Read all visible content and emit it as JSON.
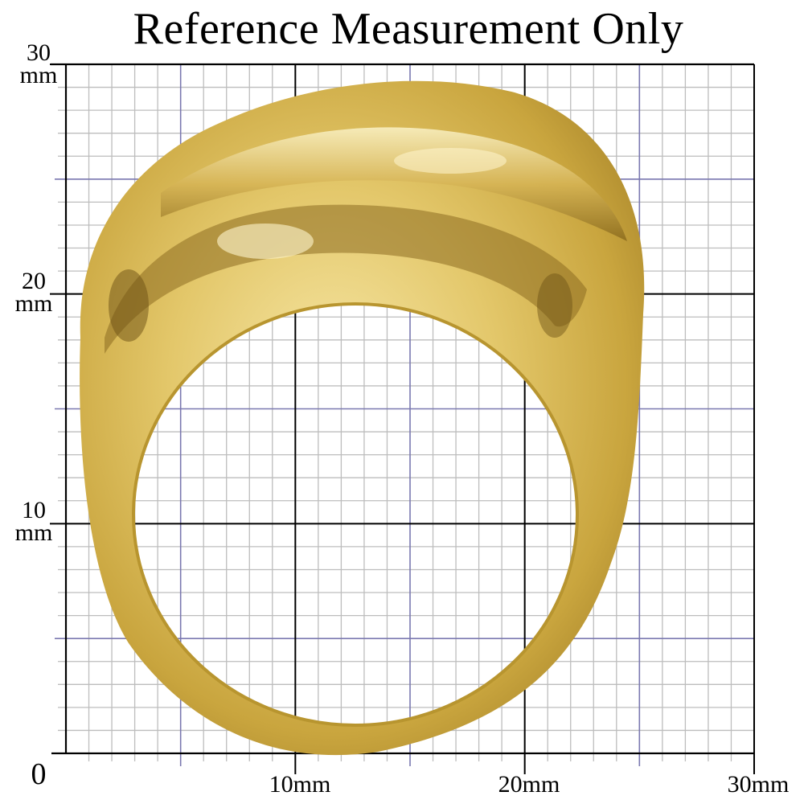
{
  "title": "Reference Measurement Only",
  "y_axis": {
    "labels": [
      {
        "value": "30",
        "unit": "mm"
      },
      {
        "value": "20",
        "unit": "mm"
      },
      {
        "value": "10",
        "unit": "mm"
      },
      {
        "value": "0",
        "unit": ""
      }
    ]
  },
  "x_axis": {
    "labels": [
      "10mm",
      "20mm",
      "30mm"
    ]
  },
  "grid": {
    "range_mm": [
      0,
      30
    ],
    "minor_step_mm": 1,
    "mid_step_mm": 5,
    "major_step_mm": 10,
    "minor_color": "#bdbdbd",
    "mid_color": "#7a78b0",
    "major_color": "#000000"
  },
  "subject": {
    "kind": "hammered gold dome ring",
    "color": "#d9bf5a"
  }
}
